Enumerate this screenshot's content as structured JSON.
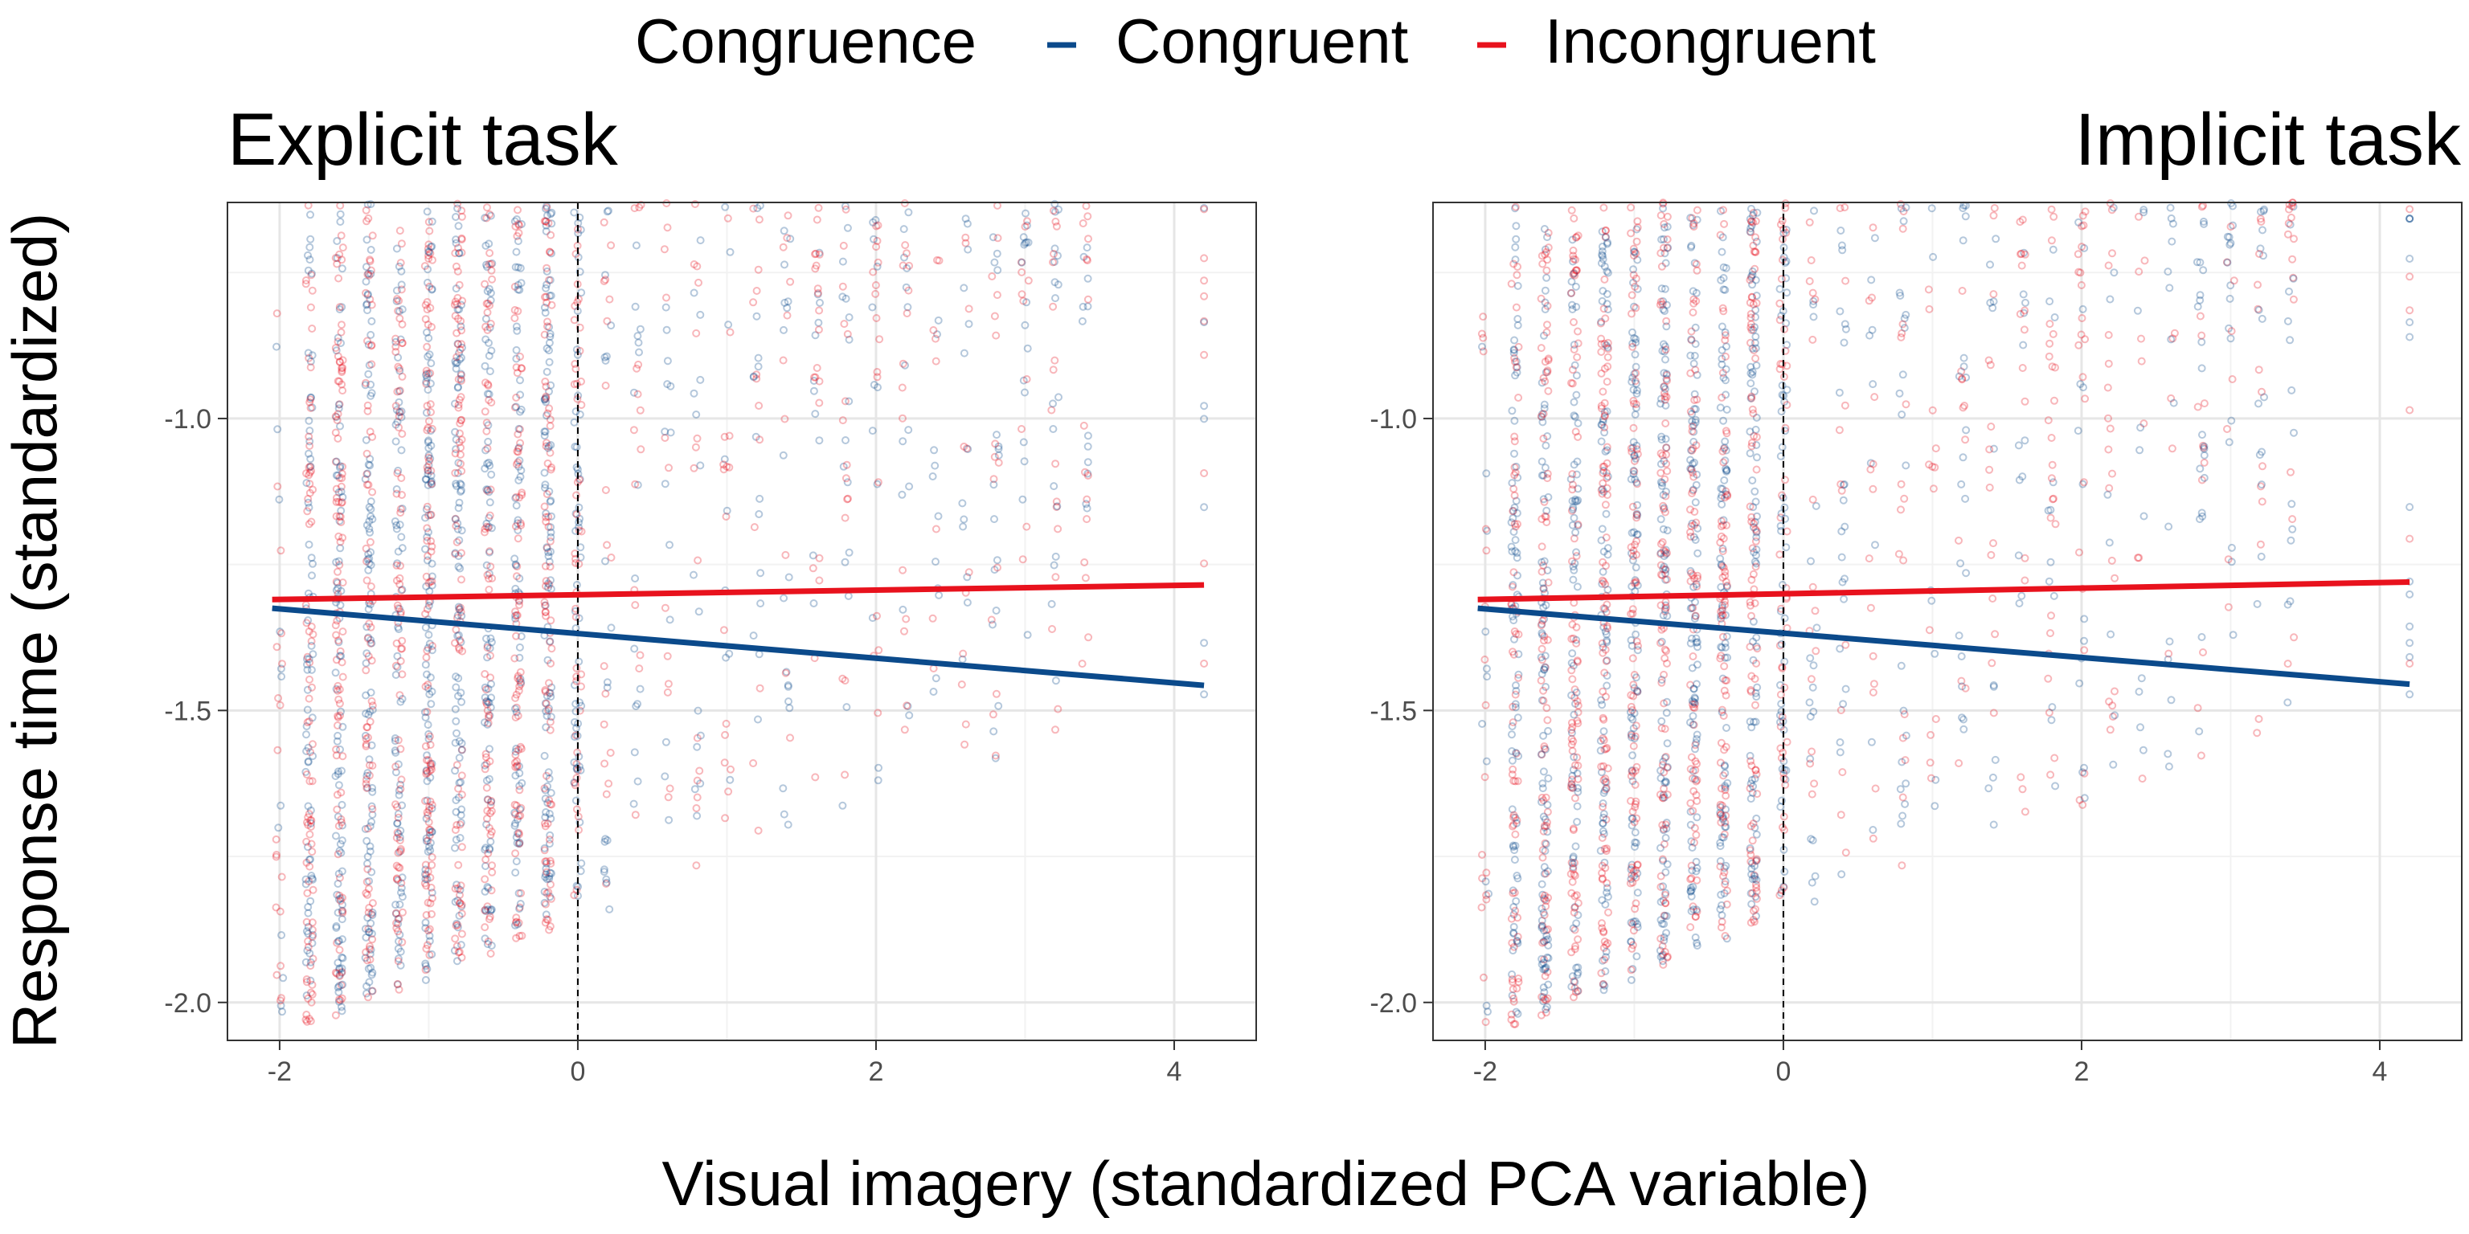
{
  "legend": {
    "title": "Congruence",
    "entries": [
      {
        "label": "Congruent",
        "color": "#0B4A8B"
      },
      {
        "label": "Incongruent",
        "color": "#E8121D"
      }
    ],
    "position": "top"
  },
  "ylabel": "Response time (standardized)",
  "xlabel": "Visual imagery (standardized PCA variable)",
  "chart_data": [
    {
      "type": "scatter",
      "title": "Explicit task",
      "x_ticks": [
        "-2",
        "0",
        "2",
        "4"
      ],
      "y_ticks": [
        "-1.0",
        "-1.5",
        "-2.0"
      ],
      "x_tick_values": [
        -2,
        0,
        2,
        4
      ],
      "y_tick_values": [
        -1.0,
        -1.5,
        -2.0
      ],
      "xlim": [
        -2.35,
        4.55
      ],
      "ylim": [
        -2.065,
        -0.63
      ],
      "grid": true,
      "reference_line": {
        "x": 0,
        "style": "dashed"
      },
      "series": [
        {
          "name": "Congruent",
          "color": "#0B4A8B",
          "fit": {
            "x": [
              -2.05,
              4.2
            ],
            "y": [
              -1.325,
              -1.457
            ]
          }
        },
        {
          "name": "Incongruent",
          "color": "#E8121D",
          "fit": {
            "x": [
              -2.05,
              4.2
            ],
            "y": [
              -1.31,
              -1.285
            ]
          }
        }
      ]
    },
    {
      "type": "scatter",
      "title": "Implicit task",
      "x_ticks": [
        "-2",
        "0",
        "2",
        "4"
      ],
      "y_ticks": [
        "-1.0",
        "-1.5",
        "-2.0"
      ],
      "x_tick_values": [
        -2,
        0,
        2,
        4
      ],
      "y_tick_values": [
        -1.0,
        -1.5,
        -2.0
      ],
      "xlim": [
        -2.35,
        4.55
      ],
      "ylim": [
        -2.065,
        -0.63
      ],
      "grid": true,
      "reference_line": {
        "x": 0,
        "style": "dashed"
      },
      "series": [
        {
          "name": "Congruent",
          "color": "#0B4A8B",
          "fit": {
            "x": [
              -2.05,
              4.2
            ],
            "y": [
              -1.325,
              -1.455
            ]
          }
        },
        {
          "name": "Incongruent",
          "color": "#E8121D",
          "fit": {
            "x": [
              -2.05,
              4.2
            ],
            "y": [
              -1.31,
              -1.28
            ]
          }
        }
      ]
    }
  ]
}
